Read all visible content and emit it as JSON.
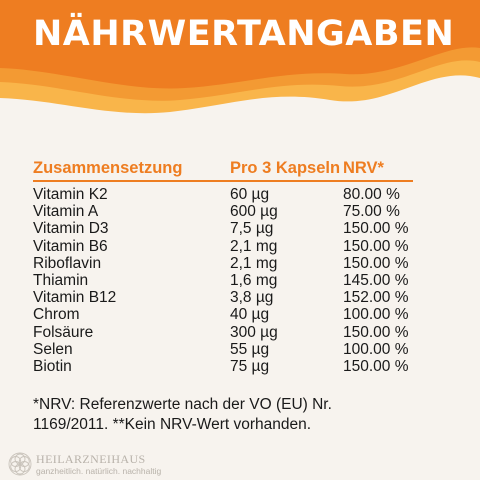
{
  "title": "NÄHRWERTANGABEN",
  "colors": {
    "accent": "#ee7d21",
    "accent_light": "#f6a43a",
    "background": "#f7f3ee"
  },
  "table": {
    "headers": [
      "Zusammensetzung",
      "Pro 3 Kapseln",
      "NRV*"
    ],
    "rows": [
      [
        "Vitamin K2",
        "60 µg",
        "80.00 %"
      ],
      [
        "Vitamin A",
        "600 µg",
        "75.00 %"
      ],
      [
        "Vitamin D3",
        "7,5 µg",
        "150.00 %"
      ],
      [
        "Vitamin B6",
        "2,1 mg",
        "150.00 %"
      ],
      [
        "Riboflavin",
        "2,1 mg",
        "150.00 %"
      ],
      [
        "Thiamin",
        "1,6 mg",
        "145.00 %"
      ],
      [
        "Vitamin B12",
        "3,8 µg",
        "152.00 %"
      ],
      [
        "Chrom",
        "40 µg",
        "100.00 %"
      ],
      [
        "Folsäure",
        "300 µg",
        "150.00 %"
      ],
      [
        "Selen",
        "55 µg",
        "100.00 %"
      ],
      [
        "Biotin",
        "75 µg",
        "150.00 %"
      ]
    ]
  },
  "footnote": "*NRV: Referenzwerte nach der VO (EU) Nr. 1169/2011. **Kein NRV-Wert vorhanden.",
  "brand": {
    "name": "HEILARZNEIHAUS",
    "tagline": "ganzheitlich. natürlich. nachhaltig"
  }
}
